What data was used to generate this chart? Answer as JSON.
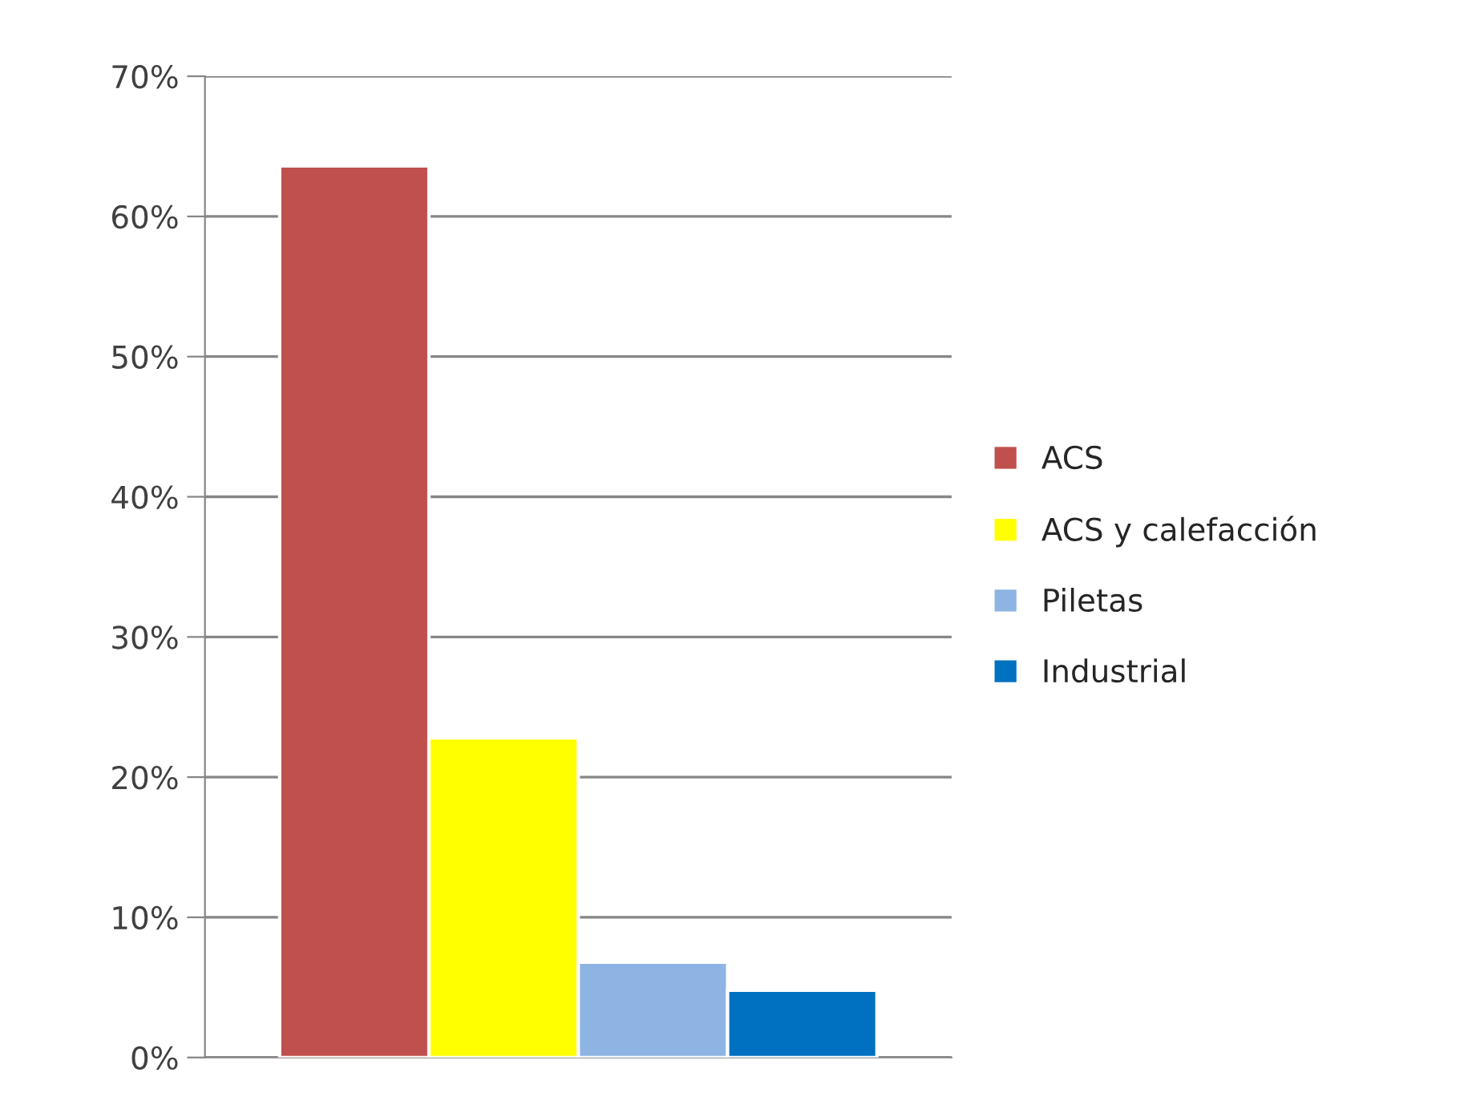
{
  "chart_data": {
    "type": "bar",
    "categories": [
      null
    ],
    "series": [
      {
        "name": "ACS",
        "color": "#c0504d",
        "values": [
          63.6
        ]
      },
      {
        "name": "ACS y calefacción",
        "color": "#ffff00",
        "values": [
          22.8
        ]
      },
      {
        "name": "Piletas",
        "color": "#8eb4e3",
        "values": [
          6.8
        ]
      },
      {
        "name": "Industrial",
        "color": "#0070c0",
        "values": [
          4.8
        ]
      }
    ],
    "ylim": [
      0,
      70
    ],
    "yticks": [
      {
        "value": 0,
        "label": "0%"
      },
      {
        "value": 10,
        "label": "10%"
      },
      {
        "value": 20,
        "label": "20%"
      },
      {
        "value": 30,
        "label": "30%"
      },
      {
        "value": 40,
        "label": "40%"
      },
      {
        "value": 50,
        "label": "50%"
      },
      {
        "value": 60,
        "label": "60%"
      },
      {
        "value": 70,
        "label": "70%"
      }
    ],
    "grid": "y",
    "legend": "right"
  }
}
